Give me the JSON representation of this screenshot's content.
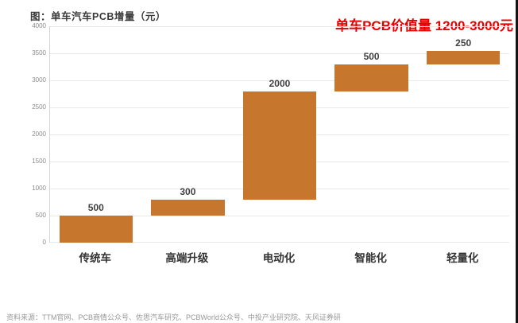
{
  "figure": {
    "title": "图：单车汽车PCB增量（元）",
    "headline": "单车PCB价值量 1200-3000元",
    "source": "资料来源：TTM官网、PCB商情公众号、佐思汽车研究、PCBWorld公众号、中投产业研究院、天风证券研"
  },
  "colors": {
    "bar": "#c7762d",
    "headline": "#e60000",
    "grid": "#e8e8e8",
    "axis_line": "#d6d6d6",
    "ytick_text": "#8c8c8c",
    "bar_label_text": "#404040"
  },
  "chart_data": {
    "type": "bar",
    "subtype": "waterfall",
    "title": "图：单车汽车PCB增量（元）",
    "annotation": "单车PCB价值量 1200-3000元",
    "categories": [
      "传统车",
      "高端升级",
      "电动化",
      "智能化",
      "轻量化"
    ],
    "values": [
      500,
      300,
      2000,
      500,
      250
    ],
    "cumulative": [
      500,
      800,
      2800,
      3300,
      3550
    ],
    "xlabel": "",
    "ylabel": "",
    "ylim": [
      0,
      4000
    ],
    "ytick_step": 500,
    "ytick_labels": [
      "0",
      "500",
      "1000",
      "1500",
      "2000",
      "2500",
      "3000",
      "3500",
      "4000"
    ],
    "grid": true,
    "legend": false,
    "bar_color": "#c7762d"
  }
}
